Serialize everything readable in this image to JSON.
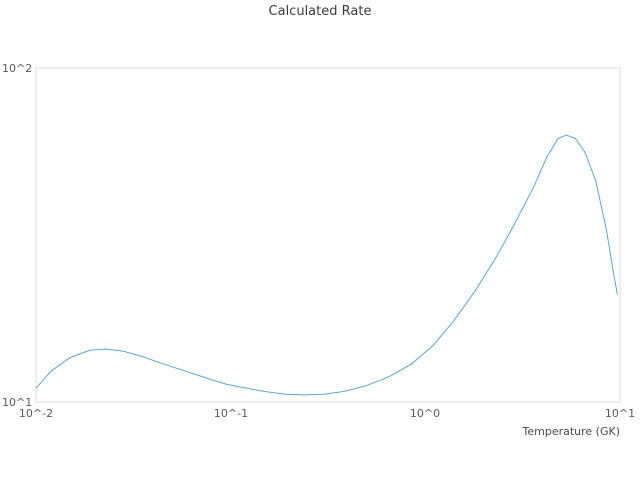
{
  "chart_data": {
    "type": "line",
    "title": "Calculated Rate",
    "xlabel": "Temperature (GK)",
    "ylabel": "",
    "xscale": "log",
    "yscale": "log",
    "xlim": [
      0.01,
      10
    ],
    "ylim": [
      10,
      100
    ],
    "grid": false,
    "legend": "none",
    "line_color": "#5ba7d1",
    "border_color": "#dcdcdc",
    "x_tick_values": [
      0.01,
      0.1,
      1,
      10
    ],
    "x_tick_labels": [
      "10^-2",
      "10^-1",
      "10^0",
      "10^1"
    ],
    "y_tick_values": [
      10,
      100
    ],
    "y_tick_labels": [
      "10^1",
      "10^2"
    ],
    "series": [
      {
        "name": "calculated-rate",
        "x": [
          0.01,
          0.012,
          0.015,
          0.019,
          0.023,
          0.028,
          0.035,
          0.045,
          0.058,
          0.075,
          0.095,
          0.12,
          0.15,
          0.19,
          0.24,
          0.3,
          0.38,
          0.5,
          0.65,
          0.85,
          1.1,
          1.4,
          1.8,
          2.3,
          2.9,
          3.6,
          4.2,
          4.8,
          5.3,
          5.9,
          6.6,
          7.5,
          8.5,
          9.3,
          9.7
        ],
        "y": [
          11.0,
          12.4,
          13.6,
          14.3,
          14.4,
          14.2,
          13.7,
          13.0,
          12.4,
          11.8,
          11.3,
          11.0,
          10.75,
          10.55,
          10.5,
          10.55,
          10.75,
          11.2,
          11.9,
          13.0,
          14.8,
          17.5,
          21.5,
          27.0,
          34.5,
          44.0,
          54.0,
          61.5,
          63.0,
          61.5,
          56.0,
          46.0,
          33.0,
          24.0,
          21.0
        ]
      }
    ]
  }
}
